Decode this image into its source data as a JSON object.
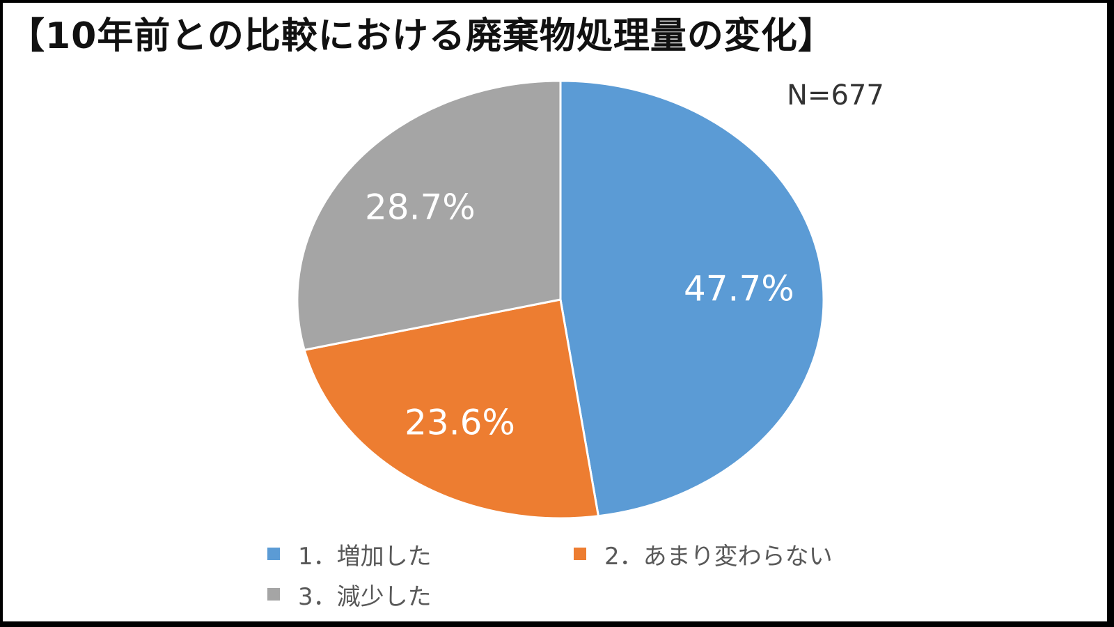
{
  "chart_data": {
    "type": "pie",
    "title": "【10年前との比較における廃棄物処理量の変化】",
    "annotation": "N=677",
    "categories": [
      "1．増加した",
      "2．あまり変わらない",
      "3．減少した"
    ],
    "values": [
      47.7,
      23.6,
      28.7
    ],
    "value_labels": [
      "47.7%",
      "23.6%",
      "28.7%"
    ],
    "colors": [
      "#5b9bd5",
      "#ed7d31",
      "#a5a5a5"
    ],
    "legend_placement": "bottom",
    "unit": "%"
  }
}
